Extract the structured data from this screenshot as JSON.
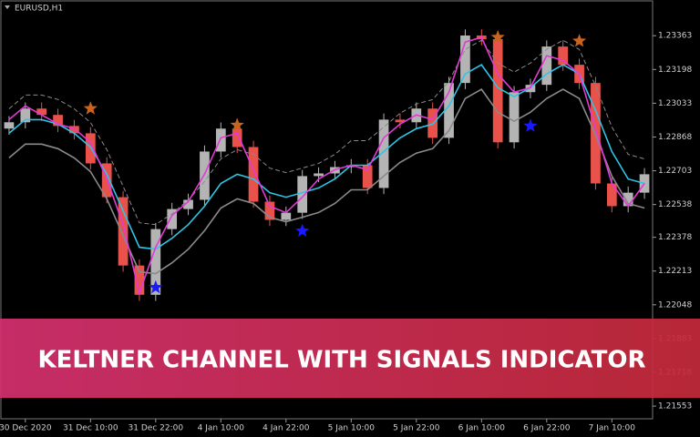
{
  "chart_data": {
    "type": "candlestick",
    "title": "EURUSD,H1",
    "banner": "KELTNER CHANNEL WITH SIGNALS INDICATOR",
    "up_color": "#b4b4b4",
    "down_color": "#e8524a",
    "open": [
      1.22909,
      1.2294,
      1.23007,
      1.22976,
      1.22922,
      1.22886,
      1.22739,
      1.22574,
      1.2224,
      1.22097,
      1.22418,
      1.22516,
      1.22561,
      1.22797,
      1.22909,
      1.22819,
      1.22552,
      1.22463,
      1.22498,
      1.22677,
      1.2269,
      1.22721,
      1.2273,
      1.22619,
      1.22953,
      1.2294,
      1.23007,
      1.22864,
      1.23132,
      1.23364,
      1.23346,
      1.22842,
      1.23087,
      1.23123,
      1.2331,
      1.23221,
      1.23132,
      1.22641,
      1.2253,
      1.22596
    ],
    "high": [
      1.2297,
      1.23037,
      1.23037,
      1.23006,
      1.22952,
      1.22916,
      1.22769,
      1.22604,
      1.2227,
      1.22448,
      1.22546,
      1.22591,
      1.22827,
      1.22939,
      1.22939,
      1.22849,
      1.22582,
      1.22528,
      1.22707,
      1.2272,
      1.22751,
      1.2276,
      1.2276,
      1.22983,
      1.22983,
      1.23037,
      1.23037,
      1.23162,
      1.23394,
      1.23394,
      1.23376,
      1.23117,
      1.23153,
      1.2334,
      1.2334,
      1.23251,
      1.23162,
      1.22671,
      1.22626,
      1.22716
    ],
    "low": [
      1.22879,
      1.2291,
      1.22946,
      1.22892,
      1.22856,
      1.22709,
      1.22544,
      1.2221,
      1.22067,
      1.22067,
      1.22388,
      1.22486,
      1.22531,
      1.22767,
      1.22789,
      1.22522,
      1.22433,
      1.22433,
      1.22468,
      1.22647,
      1.2266,
      1.22691,
      1.22589,
      1.22589,
      1.2291,
      1.2291,
      1.22834,
      1.22834,
      1.23102,
      1.23316,
      1.22812,
      1.22812,
      1.23057,
      1.23093,
      1.23191,
      1.23102,
      1.22611,
      1.225,
      1.225,
      1.22566
    ],
    "close": [
      1.2294,
      1.23007,
      1.22976,
      1.22922,
      1.22886,
      1.22739,
      1.22574,
      1.2224,
      1.22097,
      1.22418,
      1.22516,
      1.22561,
      1.22797,
      1.22909,
      1.22819,
      1.22552,
      1.22463,
      1.22498,
      1.22677,
      1.2269,
      1.22721,
      1.2273,
      1.22619,
      1.22953,
      1.2294,
      1.23007,
      1.22864,
      1.23132,
      1.23364,
      1.23346,
      1.22842,
      1.23087,
      1.23123,
      1.2331,
      1.23221,
      1.23132,
      1.22641,
      1.2253,
      1.22596,
      1.22686
    ],
    "lines": [
      {
        "color": "#8a8a8a",
        "dash": true,
        "values": [
          1.23006,
          1.23073,
          1.23073,
          1.23051,
          1.23006,
          1.22939,
          1.22806,
          1.22627,
          1.22449,
          1.2244,
          1.22493,
          1.2256,
          1.2265,
          1.22761,
          1.22806,
          1.22783,
          1.22716,
          1.22694,
          1.22716,
          1.22739,
          1.22783,
          1.2285,
          1.2285,
          1.22917,
          1.22984,
          1.23029,
          1.23051,
          1.2314,
          1.23296,
          1.23341,
          1.23229,
          1.23185,
          1.23229,
          1.23296,
          1.23341,
          1.23296,
          1.23118,
          1.22917,
          1.22783,
          1.22761
        ]
      },
      {
        "color": "#8a8a8a",
        "dash": false,
        "values": [
          1.22766,
          1.22833,
          1.22833,
          1.22811,
          1.22766,
          1.22699,
          1.22566,
          1.22387,
          1.22209,
          1.222,
          1.22253,
          1.2232,
          1.2241,
          1.22521,
          1.22566,
          1.22543,
          1.22476,
          1.22454,
          1.22476,
          1.22499,
          1.22543,
          1.2261,
          1.2261,
          1.22677,
          1.22744,
          1.22789,
          1.22811,
          1.229,
          1.23056,
          1.23101,
          1.22989,
          1.22945,
          1.22989,
          1.23056,
          1.23101,
          1.23056,
          1.22878,
          1.22677,
          1.22543,
          1.22521
        ]
      },
      {
        "color": "#2ec4e6",
        "dash": false,
        "values": [
          1.22886,
          1.22953,
          1.22953,
          1.22931,
          1.22886,
          1.22819,
          1.22686,
          1.22507,
          1.22329,
          1.2232,
          1.22373,
          1.2244,
          1.2253,
          1.22641,
          1.22686,
          1.22663,
          1.22596,
          1.22574,
          1.22596,
          1.22619,
          1.22663,
          1.2273,
          1.2273,
          1.22797,
          1.22864,
          1.22909,
          1.22931,
          1.2302,
          1.23176,
          1.23221,
          1.23109,
          1.23065,
          1.23109,
          1.23176,
          1.23221,
          1.23176,
          1.22998,
          1.22797,
          1.22663,
          1.22641
        ]
      },
      {
        "color": "#e23ad6",
        "dash": false,
        "values": [
          1.22953,
          1.2302,
          1.22976,
          1.22931,
          1.22909,
          1.22842,
          1.22663,
          1.2244,
          1.22106,
          1.22329,
          1.22485,
          1.22552,
          1.22686,
          1.22864,
          1.22886,
          1.22708,
          1.2253,
          1.22498,
          1.22574,
          1.22663,
          1.22708,
          1.2273,
          1.22708,
          1.22864,
          1.22931,
          1.22976,
          1.22953,
          1.23087,
          1.23332,
          1.23355,
          1.23176,
          1.23087,
          1.23109,
          1.23265,
          1.23243,
          1.23176,
          1.22909,
          1.22641,
          1.2253,
          1.22641
        ]
      }
    ],
    "signals": [
      {
        "color": "#c8641e",
        "x": [
          5,
          14,
          30,
          35
        ],
        "values": [
          1.23007,
          1.22926,
          1.23355,
          1.23337
        ]
      },
      {
        "color": "#1a1aff",
        "x": [
          9,
          18,
          32
        ],
        "values": [
          1.22133,
          1.22409,
          1.22922
        ]
      }
    ],
    "ylim": [
      1.21491,
      1.23533
    ],
    "yticks": [
      1.23363,
      1.23198,
      1.23033,
      1.22868,
      1.22703,
      1.22538,
      1.22378,
      1.22213,
      1.22048,
      1.21883,
      1.21718,
      1.21553
    ],
    "xlim": [
      -0.5,
      39.5
    ],
    "xticks": [
      {
        "value": 1,
        "label": "30 Dec 2020"
      },
      {
        "value": 5,
        "label": "31 Dec 10:00"
      },
      {
        "value": 9,
        "label": "31 Dec 22:00"
      },
      {
        "value": 13,
        "label": "4 Jan 10:00"
      },
      {
        "value": 17,
        "label": "4 Jan 22:00"
      },
      {
        "value": 21,
        "label": "5 Jan 10:00"
      },
      {
        "value": 25,
        "label": "5 Jan 22:00"
      },
      {
        "value": 29,
        "label": "6 Jan 10:00"
      },
      {
        "value": 33,
        "label": "6 Jan 22:00"
      },
      {
        "value": 37,
        "label": "7 Jan 10:00"
      }
    ]
  }
}
